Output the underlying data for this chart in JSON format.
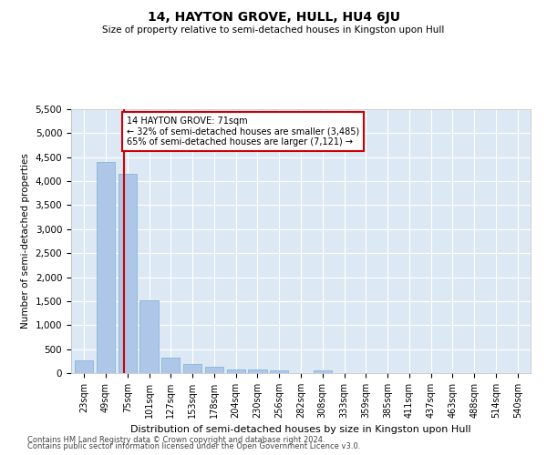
{
  "title": "14, HAYTON GROVE, HULL, HU4 6JU",
  "subtitle": "Size of property relative to semi-detached houses in Kingston upon Hull",
  "xlabel": "Distribution of semi-detached houses by size in Kingston upon Hull",
  "ylabel": "Number of semi-detached properties",
  "footnote1": "Contains HM Land Registry data © Crown copyright and database right 2024.",
  "footnote2": "Contains public sector information licensed under the Open Government Licence v3.0.",
  "property_size": 71,
  "property_label": "14 HAYTON GROVE: 71sqm",
  "pct_smaller": 32,
  "count_smaller": 3485,
  "pct_larger": 65,
  "count_larger": 7121,
  "bar_color": "#aec6e8",
  "bar_edge_color": "#7bafd4",
  "highlight_line_color": "#cc0000",
  "annotation_box_color": "#cc0000",
  "background_color": "#dce9f5",
  "bin_labels": [
    "23sqm",
    "49sqm",
    "75sqm",
    "101sqm",
    "127sqm",
    "153sqm",
    "178sqm",
    "204sqm",
    "230sqm",
    "256sqm",
    "282sqm",
    "308sqm",
    "333sqm",
    "359sqm",
    "385sqm",
    "411sqm",
    "437sqm",
    "463sqm",
    "488sqm",
    "514sqm",
    "540sqm"
  ],
  "bin_values": [
    270,
    4400,
    4150,
    1520,
    320,
    185,
    130,
    85,
    70,
    65,
    0,
    55,
    0,
    0,
    0,
    0,
    0,
    0,
    0,
    0,
    0
  ],
  "ylim": [
    0,
    5500
  ],
  "yticks": [
    0,
    500,
    1000,
    1500,
    2000,
    2500,
    3000,
    3500,
    4000,
    4500,
    5000,
    5500
  ],
  "figsize": [
    6.0,
    5.0
  ],
  "dpi": 100
}
